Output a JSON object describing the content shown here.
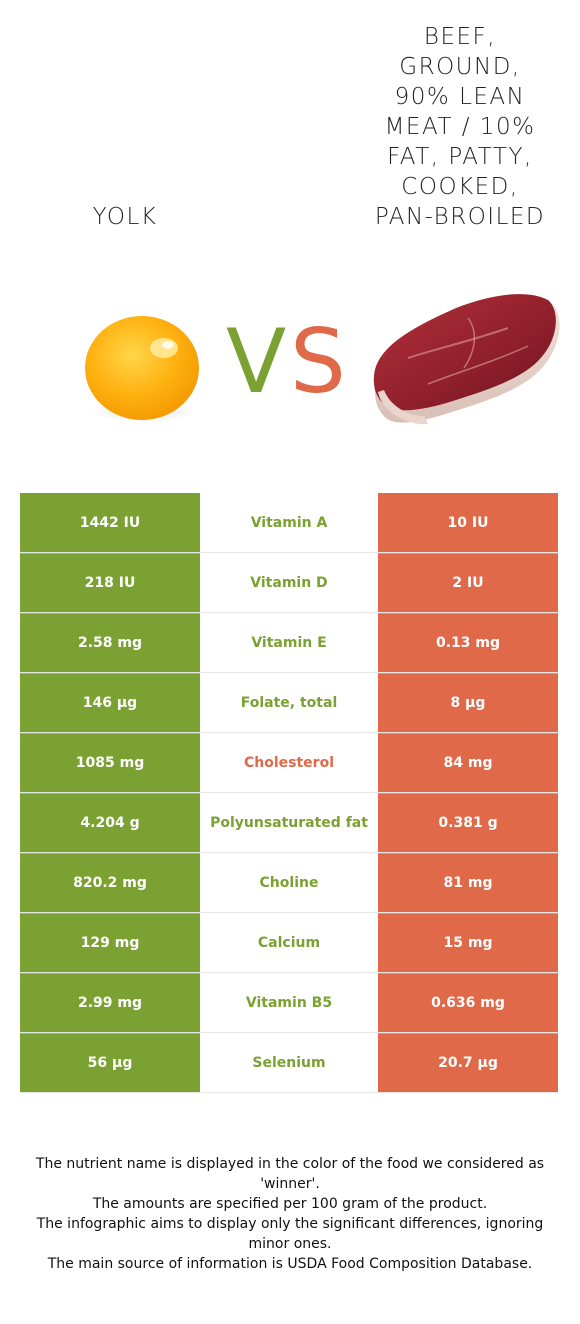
{
  "header": {
    "food_left": "YOLK",
    "food_right": "BEEF, GROUND, 90% LEAN MEAT / 10% FAT, PATTY, COOKED, PAN-BROILED",
    "food_right_lines": [
      "BEEF,",
      "GROUND,",
      "90% LEAN",
      "MEAT / 10%",
      "FAT, PATTY,",
      "COOKED,",
      "PAN-BROILED"
    ],
    "vs_v": "V",
    "vs_s": "S"
  },
  "colors": {
    "left_food": "#7ba133",
    "right_food": "#e0694a"
  },
  "rows": [
    {
      "left": "1442 IU",
      "nutrient": "Vitamin A",
      "right": "10 IU",
      "winner": "left"
    },
    {
      "left": "218 IU",
      "nutrient": "Vitamin D",
      "right": "2 IU",
      "winner": "left"
    },
    {
      "left": "2.58 mg",
      "nutrient": "Vitamin E",
      "right": "0.13 mg",
      "winner": "left"
    },
    {
      "left": "146 µg",
      "nutrient": "Folate, total",
      "right": "8 µg",
      "winner": "left"
    },
    {
      "left": "1085 mg",
      "nutrient": "Cholesterol",
      "right": "84 mg",
      "winner": "right"
    },
    {
      "left": "4.204 g",
      "nutrient": "Polyunsaturated fat",
      "right": "0.381 g",
      "winner": "left"
    },
    {
      "left": "820.2 mg",
      "nutrient": "Choline",
      "right": "81 mg",
      "winner": "left"
    },
    {
      "left": "129 mg",
      "nutrient": "Calcium",
      "right": "15 mg",
      "winner": "left"
    },
    {
      "left": "2.99 mg",
      "nutrient": "Vitamin B5",
      "right": "0.636 mg",
      "winner": "left"
    },
    {
      "left": "56 µg",
      "nutrient": "Selenium",
      "right": "20.7 µg",
      "winner": "left"
    }
  ],
  "footnotes": [
    "The nutrient name is displayed in the color of the food we considered as 'winner'.",
    "The amounts are specified per 100 gram of the product.",
    "The infographic aims to display only the significant differences, ignoring minor ones.",
    "The main source of information is USDA Food Composition Database."
  ]
}
